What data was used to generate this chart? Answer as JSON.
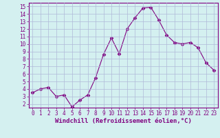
{
  "x": [
    0,
    1,
    2,
    3,
    4,
    5,
    6,
    7,
    8,
    9,
    10,
    11,
    12,
    13,
    14,
    15,
    16,
    17,
    18,
    19,
    20,
    21,
    22,
    23
  ],
  "y": [
    3.5,
    4.0,
    4.2,
    3.0,
    3.2,
    1.6,
    2.5,
    3.2,
    5.5,
    8.6,
    10.8,
    8.7,
    12.0,
    13.5,
    14.8,
    14.9,
    13.2,
    11.2,
    10.2,
    10.0,
    10.2,
    9.5,
    7.5,
    6.5
  ],
  "line_color": "#800080",
  "marker": "D",
  "marker_size": 2.5,
  "bg_color": "#d4f0f0",
  "grid_color": "#b0b8d8",
  "xlim": [
    -0.5,
    23.5
  ],
  "ylim": [
    1.5,
    15.5
  ],
  "yticks": [
    2,
    3,
    4,
    5,
    6,
    7,
    8,
    9,
    10,
    11,
    12,
    13,
    14,
    15
  ],
  "xticks": [
    0,
    1,
    2,
    3,
    4,
    5,
    6,
    7,
    8,
    9,
    10,
    11,
    12,
    13,
    14,
    15,
    16,
    17,
    18,
    19,
    20,
    21,
    22,
    23
  ],
  "xlabel": "Windchill (Refroidissement éolien,°C)",
  "tick_color": "#800080",
  "tick_fontsize": 5.5,
  "label_fontsize": 6.5,
  "spine_color": "#800080"
}
